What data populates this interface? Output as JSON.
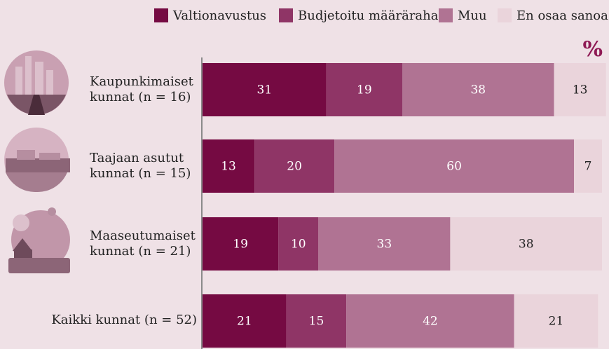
{
  "chart_data": {
    "type": "stacked-bar-horizontal",
    "unit": "%",
    "categories": [
      "Kaupunkimaiset kunnat (n = 16)",
      "Taajaan asutut kunnat (n = 15)",
      "Maaseutumaiset kunnat (n = 21)",
      "Kaikki kunnat (n = 52)"
    ],
    "series": [
      {
        "name": "Valtionavustus",
        "color": "#750a42",
        "values": [
          31,
          13,
          19,
          21
        ]
      },
      {
        "name": "Budjetoitu määräraha",
        "color": "#8f3566",
        "values": [
          19,
          20,
          10,
          15
        ]
      },
      {
        "name": "Muu",
        "color": "#b07393",
        "values": [
          38,
          60,
          33,
          42
        ]
      },
      {
        "name": "En osaa sanoa",
        "color": "#ead4db",
        "values": [
          13,
          7,
          38,
          21
        ]
      }
    ],
    "xlim": [
      0,
      100
    ]
  }
}
